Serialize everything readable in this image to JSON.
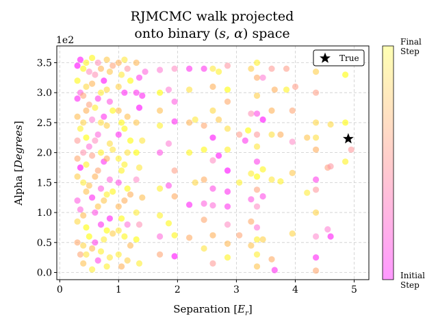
{
  "chart_data": {
    "type": "scatter",
    "title_line1": "RJMCMC walk projected",
    "title_line2_prefix": "onto binary (",
    "title_line2_s": "s",
    "title_line2_comma": ", ",
    "title_line2_alpha": "α",
    "title_line2_suffix": ") space",
    "xlabel_prefix": "Separation [",
    "xlabel_var": "E",
    "xlabel_sub": "r",
    "xlabel_suffix": "]",
    "ylabel_prefix": "Alpha [",
    "ylabel_var": "Degrees",
    "ylabel_suffix": "]",
    "y_scale_label": "1e2",
    "xlim": [
      -0.05,
      5.25
    ],
    "ylim": [
      -0.12,
      3.78
    ],
    "xticks": [
      "0",
      "1",
      "2",
      "3",
      "4",
      "5"
    ],
    "yticks": [
      "0.0",
      "0.5",
      "1.0",
      "1.5",
      "2.0",
      "2.5",
      "3.0",
      "3.5"
    ],
    "grid": true,
    "legend": {
      "label": "True",
      "marker": "star",
      "placement": "top-right"
    },
    "true_point": {
      "x": 4.9,
      "y": 2.23
    },
    "colorbar": {
      "top_label_line1": "Final",
      "top_label_line2": "Step",
      "bottom_label_line1": "Initial",
      "bottom_label_line2": "Step",
      "color_final": "#ffffb3",
      "color_initial": "#ff99ff"
    },
    "series": [
      {
        "name": "",
        "color_scale": "spring",
        "points": [
          [
            0.3,
            3.45
          ],
          [
            0.3,
            3.2
          ],
          [
            0.3,
            2.9
          ],
          [
            0.3,
            2.6
          ],
          [
            0.3,
            2.2
          ],
          [
            0.3,
            1.9
          ],
          [
            0.3,
            1.6
          ],
          [
            0.3,
            1.2
          ],
          [
            0.3,
            0.85
          ],
          [
            0.3,
            0.5
          ],
          [
            0.35,
            3.55
          ],
          [
            0.35,
            3.0
          ],
          [
            0.35,
            2.4
          ],
          [
            0.35,
            1.75
          ],
          [
            0.35,
            1.05
          ],
          [
            0.35,
            0.3
          ],
          [
            0.4,
            3.4
          ],
          [
            0.4,
            2.95
          ],
          [
            0.4,
            2.5
          ],
          [
            0.4,
            2.0
          ],
          [
            0.4,
            1.5
          ],
          [
            0.4,
            0.95
          ],
          [
            0.4,
            0.45
          ],
          [
            0.4,
            0.15
          ],
          [
            0.45,
            3.5
          ],
          [
            0.45,
            3.1
          ],
          [
            0.45,
            2.7
          ],
          [
            0.45,
            2.25
          ],
          [
            0.45,
            1.8
          ],
          [
            0.45,
            1.35
          ],
          [
            0.45,
            0.75
          ],
          [
            0.45,
            0.3
          ],
          [
            0.5,
            3.35
          ],
          [
            0.5,
            2.8
          ],
          [
            0.5,
            2.1
          ],
          [
            0.5,
            1.45
          ],
          [
            0.5,
            0.6
          ],
          [
            0.55,
            3.58
          ],
          [
            0.55,
            3.15
          ],
          [
            0.55,
            2.55
          ],
          [
            0.55,
            1.95
          ],
          [
            0.55,
            1.25
          ],
          [
            0.55,
            0.4
          ],
          [
            0.55,
            0.05
          ],
          [
            0.6,
            3.3
          ],
          [
            0.6,
            2.75
          ],
          [
            0.6,
            2.2
          ],
          [
            0.6,
            1.6
          ],
          [
            0.6,
            1.0
          ],
          [
            0.6,
            0.5
          ],
          [
            0.65,
            3.5
          ],
          [
            0.65,
            2.9
          ],
          [
            0.65,
            2.3
          ],
          [
            0.65,
            1.7
          ],
          [
            0.65,
            1.1
          ],
          [
            0.65,
            0.2
          ],
          [
            0.7,
            3.4
          ],
          [
            0.7,
            3.0
          ],
          [
            0.7,
            2.5
          ],
          [
            0.7,
            2.0
          ],
          [
            0.7,
            1.4
          ],
          [
            0.7,
            0.8
          ],
          [
            0.7,
            0.35
          ],
          [
            0.75,
            3.2
          ],
          [
            0.75,
            2.6
          ],
          [
            0.75,
            1.85
          ],
          [
            0.75,
            1.2
          ],
          [
            0.75,
            0.55
          ],
          [
            0.8,
            3.55
          ],
          [
            0.8,
            3.05
          ],
          [
            0.8,
            2.45
          ],
          [
            0.8,
            1.9
          ],
          [
            0.8,
            1.3
          ],
          [
            0.8,
            0.7
          ],
          [
            0.8,
            0.1
          ],
          [
            0.85,
            3.35
          ],
          [
            0.85,
            2.85
          ],
          [
            0.85,
            2.15
          ],
          [
            0.85,
            1.55
          ],
          [
            0.85,
            0.9
          ],
          [
            0.85,
            0.25
          ],
          [
            0.9,
            3.45
          ],
          [
            0.9,
            2.7
          ],
          [
            0.9,
            2.05
          ],
          [
            0.9,
            1.35
          ],
          [
            0.9,
            0.65
          ],
          [
            1.0,
            3.5
          ],
          [
            1.0,
            3.1
          ],
          [
            1.0,
            2.7
          ],
          [
            1.0,
            2.3
          ],
          [
            1.0,
            1.9
          ],
          [
            1.0,
            1.5
          ],
          [
            1.0,
            1.1
          ],
          [
            1.0,
            0.7
          ],
          [
            1.0,
            0.3
          ],
          [
            1.05,
            3.3
          ],
          [
            1.05,
            2.5
          ],
          [
            1.05,
            1.7
          ],
          [
            1.05,
            0.9
          ],
          [
            1.05,
            0.1
          ],
          [
            1.1,
            3.55
          ],
          [
            1.1,
            3.0
          ],
          [
            1.1,
            2.4
          ],
          [
            1.1,
            1.8
          ],
          [
            1.1,
            1.2
          ],
          [
            1.1,
            0.6
          ],
          [
            1.15,
            3.4
          ],
          [
            1.15,
            2.6
          ],
          [
            1.15,
            2.0
          ],
          [
            1.15,
            1.4
          ],
          [
            1.15,
            0.8
          ],
          [
            1.15,
            0.2
          ],
          [
            1.2,
            3.2
          ],
          [
            1.2,
            2.2
          ],
          [
            1.2,
            1.3
          ],
          [
            1.2,
            0.45
          ],
          [
            1.3,
            3.5
          ],
          [
            1.3,
            3.0
          ],
          [
            1.3,
            2.5
          ],
          [
            1.3,
            2.0
          ],
          [
            1.3,
            1.55
          ],
          [
            1.3,
            1.0
          ],
          [
            1.3,
            0.55
          ],
          [
            1.35,
            3.25
          ],
          [
            1.35,
            2.75
          ],
          [
            1.35,
            1.75
          ],
          [
            1.35,
            0.8
          ],
          [
            1.35,
            0.15
          ],
          [
            1.4,
            2.95
          ],
          [
            1.4,
            2.2
          ],
          [
            1.4,
            1.25
          ],
          [
            1.45,
            3.35
          ],
          [
            1.7,
            3.38
          ],
          [
            1.7,
            3.0
          ],
          [
            1.7,
            2.7
          ],
          [
            1.7,
            2.45
          ],
          [
            1.7,
            2.0
          ],
          [
            1.7,
            1.4
          ],
          [
            1.7,
            0.95
          ],
          [
            1.7,
            0.6
          ],
          [
            1.7,
            0.3
          ],
          [
            1.85,
            3.05
          ],
          [
            1.85,
            2.15
          ],
          [
            1.85,
            1.45
          ],
          [
            1.85,
            0.82
          ],
          [
            1.95,
            3.4
          ],
          [
            1.95,
            2.85
          ],
          [
            1.95,
            2.52
          ],
          [
            1.95,
            1.7
          ],
          [
            1.95,
            1.27
          ],
          [
            1.95,
            0.62
          ],
          [
            1.95,
            0.27
          ],
          [
            2.2,
            3.4
          ],
          [
            2.2,
            3.05
          ],
          [
            2.2,
            2.5
          ],
          [
            2.2,
            2.0
          ],
          [
            2.2,
            1.13
          ],
          [
            2.2,
            0.58
          ],
          [
            2.3,
            2.55
          ],
          [
            2.3,
            1.5
          ],
          [
            2.45,
            3.4
          ],
          [
            2.45,
            2.45
          ],
          [
            2.45,
            2.05
          ],
          [
            2.45,
            1.55
          ],
          [
            2.45,
            1.15
          ],
          [
            2.45,
            0.88
          ],
          [
            2.45,
            0.4
          ],
          [
            2.6,
            3.4
          ],
          [
            2.6,
            3.1
          ],
          [
            2.6,
            2.7
          ],
          [
            2.6,
            2.25
          ],
          [
            2.6,
            1.87
          ],
          [
            2.6,
            1.4
          ],
          [
            2.6,
            1.12
          ],
          [
            2.6,
            0.62
          ],
          [
            2.6,
            0.15
          ],
          [
            2.7,
            3.35
          ],
          [
            2.7,
            2.55
          ],
          [
            2.7,
            1.95
          ],
          [
            2.85,
            3.45
          ],
          [
            2.85,
            3.05
          ],
          [
            2.85,
            2.85
          ],
          [
            2.85,
            2.4
          ],
          [
            2.85,
            2.05
          ],
          [
            2.85,
            1.7
          ],
          [
            2.85,
            1.35
          ],
          [
            2.85,
            1.1
          ],
          [
            2.85,
            0.8
          ],
          [
            2.85,
            0.48
          ],
          [
            2.85,
            0.25
          ],
          [
            3.05,
            2.3
          ],
          [
            3.05,
            1.5
          ],
          [
            3.05,
            0.62
          ],
          [
            3.15,
            2.2
          ],
          [
            3.2,
            2.37
          ],
          [
            3.25,
            3.4
          ],
          [
            3.25,
            2.65
          ],
          [
            3.25,
            1.65
          ],
          [
            3.25,
            1.22
          ],
          [
            3.25,
            0.85
          ],
          [
            3.25,
            0.45
          ],
          [
            3.35,
            3.5
          ],
          [
            3.35,
            3.25
          ],
          [
            3.35,
            2.95
          ],
          [
            3.35,
            2.65
          ],
          [
            3.35,
            2.3
          ],
          [
            3.35,
            2.1
          ],
          [
            3.35,
            1.85
          ],
          [
            3.35,
            1.6
          ],
          [
            3.35,
            1.38
          ],
          [
            3.35,
            1.1
          ],
          [
            3.35,
            0.75
          ],
          [
            3.35,
            0.55
          ],
          [
            3.35,
            0.3
          ],
          [
            3.35,
            0.1
          ],
          [
            3.45,
            3.25
          ],
          [
            3.45,
            2.55
          ],
          [
            3.45,
            1.72
          ],
          [
            3.45,
            1.27
          ],
          [
            3.45,
            0.55
          ],
          [
            3.6,
            3.4
          ],
          [
            3.6,
            2.7
          ],
          [
            3.6,
            2.3
          ],
          [
            3.6,
            1.55
          ],
          [
            3.6,
            0.22
          ],
          [
            3.65,
            3.05
          ],
          [
            3.65,
            0.04
          ],
          [
            3.75,
            2.3
          ],
          [
            3.75,
            1.52
          ],
          [
            3.85,
            3.4
          ],
          [
            3.85,
            3.05
          ],
          [
            3.95,
            2.7
          ],
          [
            3.95,
            2.18
          ],
          [
            3.95,
            1.66
          ],
          [
            3.95,
            0.65
          ],
          [
            4.0,
            3.1
          ],
          [
            4.2,
            1.33
          ],
          [
            4.2,
            2.25
          ],
          [
            4.35,
            3.35
          ],
          [
            4.35,
            3.0
          ],
          [
            4.35,
            2.5
          ],
          [
            4.35,
            2.25
          ],
          [
            4.35,
            2.05
          ],
          [
            4.35,
            1.55
          ],
          [
            4.35,
            1.38
          ],
          [
            4.35,
            1.0
          ],
          [
            4.35,
            0.6
          ],
          [
            4.35,
            0.25
          ],
          [
            4.35,
            0.03
          ],
          [
            4.55,
            1.75
          ],
          [
            4.55,
            0.72
          ],
          [
            4.6,
            2.47
          ],
          [
            4.6,
            1.77
          ],
          [
            4.6,
            0.6
          ],
          [
            4.85,
            3.3
          ],
          [
            4.85,
            2.5
          ],
          [
            4.85,
            1.85
          ],
          [
            4.95,
            2.05
          ]
        ]
      }
    ]
  }
}
